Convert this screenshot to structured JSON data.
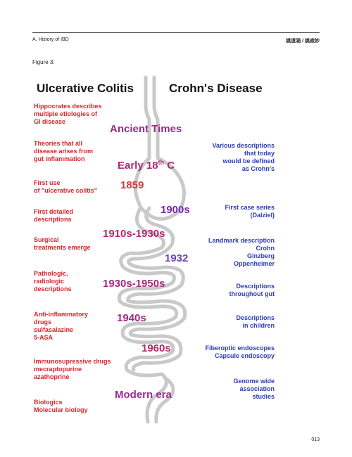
{
  "header": {
    "section": "A. History of IBD",
    "authors": "姚道涵 / 姚寂妙",
    "page": "013"
  },
  "figure": {
    "label": "Figure 3:",
    "left_title": "Ulcerative Colitis",
    "right_title": "Crohn's Disease",
    "left": [
      [
        "Hippocrates describes",
        "multiple etiologies of",
        "GI disease"
      ],
      [
        "Theories that all",
        "disease arises from",
        "gut inflammation"
      ],
      [
        "First use",
        "of \"ulcerative colitis\""
      ],
      [
        "First detailed",
        "descriptions"
      ],
      [
        "Surgical",
        "treatments emerge"
      ],
      [
        "Pathologic,",
        "radiologic",
        "descriptions"
      ],
      [
        "Anti-inflammatory",
        "drugs",
        "sulfasalazine",
        "5-ASA"
      ],
      [
        "Immunosupressive drugs",
        "mecraptopurine",
        "azathoprine"
      ],
      [
        "Biologics",
        "Molecular biology"
      ]
    ],
    "right": [
      [
        "Various descriptions",
        "that today",
        "would be defined",
        "as Crohn's"
      ],
      [
        "First case series",
        "(Dalziel)"
      ],
      [
        "Landmark description",
        "Crohn",
        "Ginzberg",
        "Oppenheimer"
      ],
      [
        "Descriptions",
        "throughout gut"
      ],
      [
        "Descriptions",
        "in children"
      ],
      [
        "Fiberoptic endoscopes",
        "Capsule endoscopy"
      ],
      [
        "Genome wide",
        "association",
        "studies"
      ]
    ],
    "eras": {
      "ancient": "Ancient Times",
      "c18_main": "Early 18",
      "c18_sup": "th",
      "c18_end": " C",
      "y1859": "1859",
      "y1900s": "1900s",
      "y1910": "1910s-1930s",
      "y1932": "1932",
      "y1930": "1930s-1950s",
      "y1940": "1940s",
      "y1960": "1960s",
      "modern": "Modern era"
    },
    "colors": {
      "red": "#d8232a",
      "blue": "#2a3bb5",
      "gut": "#c9c9c9"
    }
  }
}
